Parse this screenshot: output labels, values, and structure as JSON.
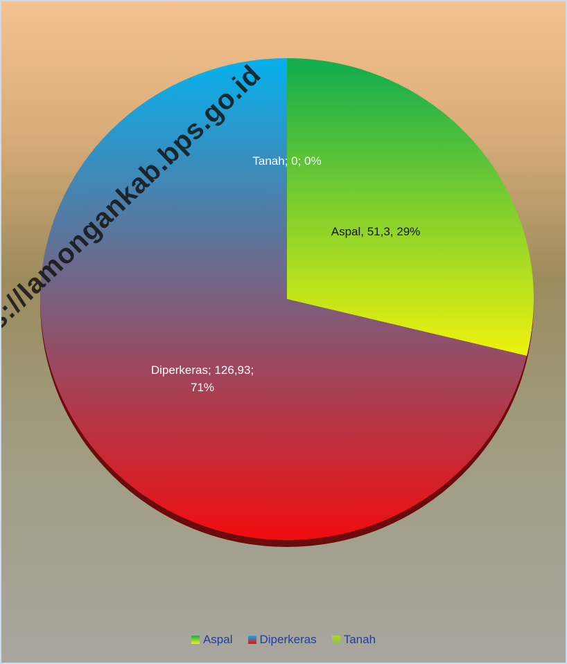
{
  "chart_data": {
    "type": "pie",
    "categories": [
      "Aspal",
      "Diperkeras",
      "Tanah"
    ],
    "values": [
      51.3,
      126.93,
      0
    ],
    "value_labels": [
      "Aspal, 51,3, 29%",
      "Diperkeras; 126,93; 71%",
      "Tanah; 0; 0%"
    ],
    "colors": [
      [
        "#16ad4c",
        "#eef10e"
      ],
      [
        "#0aaeea",
        "#f40a0a"
      ],
      [
        "#b5d334",
        "#8fbe4a"
      ]
    ],
    "legend": "bottom",
    "watermark": "https://lamongankab.bps.go.id"
  }
}
